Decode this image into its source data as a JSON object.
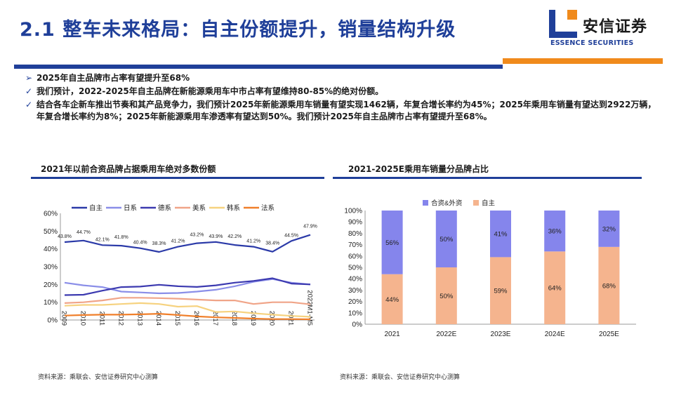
{
  "header": {
    "title": "2.1 整车未来格局：自主份额提升，销量结构升级",
    "logo_cn": "安信证券",
    "logo_en": "ESSENCE SECURITIES"
  },
  "bullets": [
    {
      "marker": "➢",
      "text": "2025年自主品牌市占率有望提升至68%"
    },
    {
      "marker": "✓",
      "text": "我们预计，2022-2025年自主品牌在新能源乘用车中市占率有望维持80-85%的绝对份额。"
    },
    {
      "marker": "✓",
      "text": "结合各车企新车推出节奏和其产品竞争力，我们预计2025年新能源乘用车销量有望实现1462辆，年复合增长率约为45%；2025年乘用车销量有望达到2922万辆，年复合增长率约为8%；2025年新能源乘用车渗透率有望达到50%。我们预计2025年自主品牌市占率有望提升至68%。"
    }
  ],
  "left_panel": {
    "title": "2021年以前合资品牌占据乘用车绝对多数份额",
    "source": "资料来源：乘联会、安信证券研究中心测算"
  },
  "right_panel": {
    "title": "2021-2025E乘用车销量分品牌占比",
    "source": "资料来源：乘联会、安信证券研究中心测算"
  },
  "chart_data": [
    {
      "type": "line",
      "title": "",
      "xlabel": "",
      "ylabel": "",
      "x": [
        "2009",
        "2010",
        "2011",
        "2012",
        "2013",
        "2014",
        "2015",
        "2016",
        "2017",
        "2018",
        "2019",
        "2020",
        "2021",
        "2022M1-M5"
      ],
      "ylim": [
        0,
        60
      ],
      "yticks": [
        "0%",
        "10%",
        "20%",
        "30%",
        "40%",
        "50%",
        "60%"
      ],
      "legend_position": "top",
      "grid": false,
      "series": [
        {
          "name": "自主",
          "color": "#2b3aa8",
          "values": [
            43.8,
            44.7,
            42.1,
            41.8,
            40.4,
            38.3,
            41.2,
            43.2,
            43.9,
            42.2,
            41.2,
            38.4,
            44.5,
            47.9
          ],
          "labels": [
            "43.8%",
            "44.7%",
            "42.1%",
            "41.8%",
            "40.4%",
            "38.3%",
            "41.2%",
            "43.2%",
            "43.9%",
            "42.2%",
            "41.2%",
            "38.4%",
            "44.5%",
            "47.9%"
          ]
        },
        {
          "name": "日系",
          "color": "#8a8ee8",
          "values": [
            21,
            19.5,
            18.5,
            16,
            15.5,
            15,
            15.2,
            16,
            17,
            19,
            21.5,
            23,
            21,
            20
          ]
        },
        {
          "name": "德系",
          "color": "#3c3ab0",
          "values": [
            14,
            14.2,
            16.5,
            18.5,
            18.8,
            19.8,
            19,
            18.6,
            19.5,
            21,
            22,
            23.5,
            20.5,
            20
          ]
        },
        {
          "name": "美系",
          "color": "#f0a488",
          "values": [
            9.5,
            10,
            11,
            12.5,
            12.5,
            12.3,
            12,
            11.5,
            11,
            11,
            9,
            10,
            10,
            8.8
          ]
        },
        {
          "name": "韩系",
          "color": "#f6d27f",
          "values": [
            8,
            8.5,
            8.5,
            9,
            9.5,
            9,
            7.5,
            7.8,
            4.5,
            4.8,
            3.8,
            3,
            2.3,
            1.8
          ]
        },
        {
          "name": "法系",
          "color": "#f07f2a",
          "values": [
            2.5,
            2.8,
            3,
            3,
            3.2,
            3.5,
            2.8,
            2,
            1.5,
            1.2,
            0.8,
            0.5,
            0.5,
            0.4
          ]
        }
      ]
    },
    {
      "type": "bar",
      "stacked": true,
      "title": "",
      "xlabel": "",
      "ylabel": "",
      "categories": [
        "2021",
        "2022E",
        "2023E",
        "2024E",
        "2025E"
      ],
      "ylim": [
        0,
        100
      ],
      "yticks": [
        "0%",
        "10%",
        "20%",
        "30%",
        "40%",
        "50%",
        "60%",
        "70%",
        "80%",
        "90%",
        "100%"
      ],
      "legend_position": "top",
      "series": [
        {
          "name": "自主",
          "color": "#f5b48e",
          "values": [
            44,
            50,
            59,
            64,
            68
          ],
          "labels": [
            "44%",
            "50%",
            "59%",
            "64%",
            "68%"
          ]
        },
        {
          "name": "合资&外资",
          "color": "#8585ec",
          "values": [
            56,
            50,
            41,
            36,
            32
          ],
          "labels": [
            "56%",
            "50%",
            "41%",
            "36%",
            "32%"
          ]
        }
      ],
      "legend_order": [
        "合资&外资",
        "自主"
      ]
    }
  ]
}
